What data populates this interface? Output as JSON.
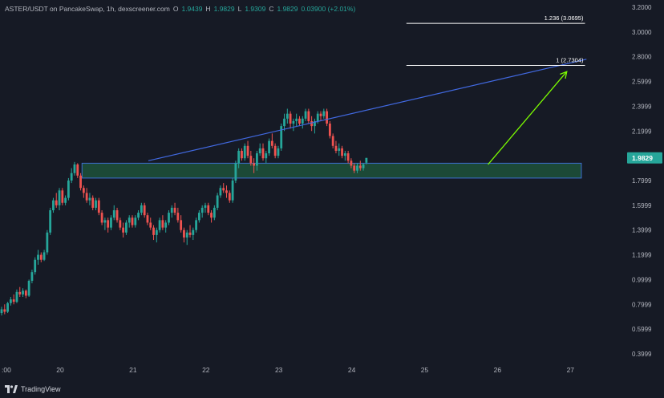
{
  "header": {
    "pair_text": "ASTER/USDT on PancakeSwap, 1h, dexscreener.com",
    "o_label": "O",
    "o_value": "1.9439",
    "h_label": "H",
    "h_value": "1.9829",
    "l_label": "L",
    "l_value": "1.9309",
    "c_label": "C",
    "c_value": "1.9829",
    "change": "0.03900 (+2.01%)"
  },
  "footer": {
    "brand": "TradingView"
  },
  "colors": {
    "background": "#161a25",
    "up": "#26a69a",
    "down": "#ef5350",
    "trendline": "#4169e1",
    "zone_fill": "#1f5a3e",
    "zone_border": "#3d6fd0",
    "arrow": "#7cfc00",
    "fib_line": "#ffffff",
    "axis_text": "#b2b5be",
    "price_tag": "#26a69a"
  },
  "chart_data": {
    "type": "candlestick",
    "title": "ASTER/USDT on PancakeSwap, 1h, dexscreener.com",
    "xlabel": "",
    "ylabel": "",
    "grid": false,
    "y_ticks": [
      "3.2000",
      "3.0000",
      "2.8000",
      "2.5999",
      "2.3999",
      "2.1999",
      "1.9999",
      "1.7999",
      "1.5999",
      "1.3999",
      "1.1999",
      "0.9999",
      "0.7999",
      "0.5999",
      "0.3999"
    ],
    "y_tick_values": [
      3.2,
      3.0,
      2.8,
      2.5999,
      2.3999,
      2.1999,
      1.9999,
      1.7999,
      1.5999,
      1.3999,
      1.1999,
      0.9999,
      0.7999,
      0.5999,
      0.3999
    ],
    "ylim": [
      0.3,
      3.2
    ],
    "x_ticks": [
      {
        "label": ":00",
        "day": 18.78
      },
      {
        "label": "20",
        "day": 20
      },
      {
        "label": "21",
        "day": 21
      },
      {
        "label": "22",
        "day": 22
      },
      {
        "label": "23",
        "day": 23
      },
      {
        "label": "24",
        "day": 24
      },
      {
        "label": "25",
        "day": 25
      },
      {
        "label": "26",
        "day": 26
      },
      {
        "label": "27",
        "day": 27
      }
    ],
    "xlim": [
      18.7,
      27.8
    ],
    "last_price": "1.9829",
    "last_price_value": 1.9829,
    "candle_start_day": 18.78,
    "candle_step_days": 0.0417,
    "candles": [
      [
        0.6,
        0.62,
        0.58,
        0.61
      ],
      [
        0.61,
        0.63,
        0.57,
        0.58
      ],
      [
        0.58,
        0.62,
        0.55,
        0.6
      ],
      [
        0.6,
        0.62,
        0.52,
        0.55
      ],
      [
        0.55,
        0.62,
        0.54,
        0.61
      ],
      [
        0.61,
        0.66,
        0.59,
        0.64
      ],
      [
        0.64,
        0.7,
        0.62,
        0.67
      ],
      [
        0.67,
        0.7,
        0.63,
        0.64
      ],
      [
        0.64,
        0.72,
        0.63,
        0.71
      ],
      [
        0.71,
        0.76,
        0.69,
        0.73
      ],
      [
        0.73,
        0.78,
        0.71,
        0.76
      ],
      [
        0.76,
        0.8,
        0.72,
        0.74
      ],
      [
        0.74,
        0.82,
        0.73,
        0.81
      ],
      [
        0.81,
        0.86,
        0.79,
        0.84
      ],
      [
        0.84,
        0.88,
        0.8,
        0.82
      ],
      [
        0.82,
        0.92,
        0.81,
        0.9
      ],
      [
        0.9,
        0.94,
        0.86,
        0.88
      ],
      [
        0.88,
        0.93,
        0.86,
        0.91
      ],
      [
        0.91,
        0.92,
        0.85,
        0.87
      ],
      [
        0.87,
        1.0,
        0.86,
        0.99
      ],
      [
        0.99,
        1.08,
        0.97,
        1.06
      ],
      [
        1.06,
        1.18,
        1.04,
        1.16
      ],
      [
        1.16,
        1.24,
        1.12,
        1.2
      ],
      [
        1.2,
        1.22,
        1.14,
        1.16
      ],
      [
        1.16,
        1.24,
        1.15,
        1.22
      ],
      [
        1.22,
        1.4,
        1.2,
        1.38
      ],
      [
        1.38,
        1.58,
        1.36,
        1.56
      ],
      [
        1.56,
        1.66,
        1.54,
        1.64
      ],
      [
        1.64,
        1.7,
        1.58,
        1.6
      ],
      [
        1.6,
        1.74,
        1.56,
        1.72
      ],
      [
        1.72,
        1.74,
        1.6,
        1.62
      ],
      [
        1.62,
        1.68,
        1.6,
        1.66
      ],
      [
        1.66,
        1.82,
        1.64,
        1.8
      ],
      [
        1.8,
        1.9,
        1.78,
        1.86
      ],
      [
        1.86,
        1.95,
        1.84,
        1.93
      ],
      [
        1.93,
        1.94,
        1.82,
        1.84
      ],
      [
        1.84,
        1.86,
        1.72,
        1.74
      ],
      [
        1.74,
        1.76,
        1.66,
        1.7
      ],
      [
        1.7,
        1.74,
        1.62,
        1.64
      ],
      [
        1.64,
        1.7,
        1.6,
        1.66
      ],
      [
        1.66,
        1.68,
        1.56,
        1.58
      ],
      [
        1.58,
        1.66,
        1.56,
        1.64
      ],
      [
        1.64,
        1.66,
        1.52,
        1.54
      ],
      [
        1.54,
        1.56,
        1.44,
        1.46
      ],
      [
        1.46,
        1.5,
        1.4,
        1.48
      ],
      [
        1.48,
        1.5,
        1.38,
        1.42
      ],
      [
        1.42,
        1.52,
        1.4,
        1.5
      ],
      [
        1.5,
        1.6,
        1.48,
        1.56
      ],
      [
        1.56,
        1.58,
        1.46,
        1.48
      ],
      [
        1.48,
        1.5,
        1.4,
        1.42
      ],
      [
        1.42,
        1.46,
        1.34,
        1.38
      ],
      [
        1.38,
        1.48,
        1.36,
        1.46
      ],
      [
        1.46,
        1.52,
        1.42,
        1.5
      ],
      [
        1.5,
        1.52,
        1.42,
        1.44
      ],
      [
        1.44,
        1.52,
        1.42,
        1.5
      ],
      [
        1.5,
        1.56,
        1.48,
        1.54
      ],
      [
        1.54,
        1.62,
        1.52,
        1.6
      ],
      [
        1.6,
        1.62,
        1.5,
        1.52
      ],
      [
        1.52,
        1.54,
        1.44,
        1.46
      ],
      [
        1.46,
        1.5,
        1.4,
        1.42
      ],
      [
        1.42,
        1.44,
        1.32,
        1.36
      ],
      [
        1.36,
        1.42,
        1.3,
        1.4
      ],
      [
        1.4,
        1.5,
        1.38,
        1.48
      ],
      [
        1.48,
        1.52,
        1.4,
        1.42
      ],
      [
        1.42,
        1.48,
        1.38,
        1.46
      ],
      [
        1.46,
        1.56,
        1.44,
        1.54
      ],
      [
        1.54,
        1.6,
        1.5,
        1.58
      ],
      [
        1.58,
        1.62,
        1.52,
        1.54
      ],
      [
        1.54,
        1.58,
        1.46,
        1.48
      ],
      [
        1.48,
        1.52,
        1.38,
        1.4
      ],
      [
        1.4,
        1.42,
        1.3,
        1.34
      ],
      [
        1.34,
        1.4,
        1.28,
        1.38
      ],
      [
        1.38,
        1.44,
        1.34,
        1.36
      ],
      [
        1.36,
        1.42,
        1.32,
        1.4
      ],
      [
        1.4,
        1.5,
        1.38,
        1.48
      ],
      [
        1.48,
        1.56,
        1.46,
        1.54
      ],
      [
        1.54,
        1.6,
        1.5,
        1.58
      ],
      [
        1.58,
        1.62,
        1.54,
        1.6
      ],
      [
        1.6,
        1.62,
        1.52,
        1.54
      ],
      [
        1.54,
        1.56,
        1.46,
        1.5
      ],
      [
        1.5,
        1.6,
        1.48,
        1.58
      ],
      [
        1.58,
        1.7,
        1.56,
        1.68
      ],
      [
        1.68,
        1.76,
        1.66,
        1.74
      ],
      [
        1.74,
        1.78,
        1.7,
        1.72
      ],
      [
        1.72,
        1.76,
        1.66,
        1.7
      ],
      [
        1.7,
        1.72,
        1.62,
        1.64
      ],
      [
        1.64,
        1.82,
        1.62,
        1.8
      ],
      [
        1.8,
        1.96,
        1.78,
        1.94
      ],
      [
        1.94,
        2.06,
        1.9,
        2.04
      ],
      [
        2.04,
        2.06,
        1.96,
        1.98
      ],
      [
        1.98,
        2.1,
        1.96,
        2.08
      ],
      [
        2.08,
        2.12,
        1.98,
        2.0
      ],
      [
        2.0,
        2.04,
        1.92,
        1.94
      ],
      [
        1.94,
        1.98,
        1.86,
        1.92
      ],
      [
        1.92,
        2.04,
        1.88,
        2.02
      ],
      [
        2.02,
        2.1,
        2.0,
        2.06
      ],
      [
        2.06,
        2.1,
        1.96,
        1.98
      ],
      [
        1.98,
        2.04,
        1.94,
        2.02
      ],
      [
        2.02,
        2.14,
        2.0,
        2.12
      ],
      [
        2.12,
        2.18,
        2.06,
        2.08
      ],
      [
        2.08,
        2.1,
        1.98,
        2.0
      ],
      [
        2.0,
        2.08,
        1.98,
        2.06
      ],
      [
        2.06,
        2.26,
        2.04,
        2.24
      ],
      [
        2.24,
        2.34,
        2.2,
        2.3
      ],
      [
        2.3,
        2.38,
        2.26,
        2.34
      ],
      [
        2.34,
        2.36,
        2.22,
        2.26
      ],
      [
        2.26,
        2.3,
        2.2,
        2.28
      ],
      [
        2.28,
        2.34,
        2.24,
        2.3
      ],
      [
        2.3,
        2.32,
        2.24,
        2.26
      ],
      [
        2.26,
        2.32,
        2.22,
        2.3
      ],
      [
        2.3,
        2.38,
        2.28,
        2.36
      ],
      [
        2.36,
        2.38,
        2.26,
        2.28
      ],
      [
        2.28,
        2.32,
        2.2,
        2.24
      ],
      [
        2.24,
        2.3,
        2.18,
        2.28
      ],
      [
        2.28,
        2.36,
        2.26,
        2.34
      ],
      [
        2.34,
        2.36,
        2.28,
        2.32
      ],
      [
        2.32,
        2.38,
        2.3,
        2.36
      ],
      [
        2.36,
        2.38,
        2.24,
        2.26
      ],
      [
        2.26,
        2.28,
        2.14,
        2.16
      ],
      [
        2.16,
        2.18,
        2.06,
        2.08
      ],
      [
        2.08,
        2.12,
        2.02,
        2.04
      ],
      [
        2.04,
        2.1,
        2.0,
        2.06
      ],
      [
        2.06,
        2.08,
        1.98,
        2.0
      ],
      [
        2.0,
        2.04,
        1.96,
        2.02
      ],
      [
        2.02,
        2.04,
        1.94,
        1.96
      ],
      [
        1.96,
        1.98,
        1.9,
        1.92
      ],
      [
        1.92,
        1.94,
        1.86,
        1.88
      ],
      [
        1.88,
        1.94,
        1.86,
        1.92
      ],
      [
        1.92,
        1.96,
        1.88,
        1.9
      ],
      [
        1.9,
        1.94,
        1.88,
        1.93
      ],
      [
        1.9439,
        1.9829,
        1.9309,
        1.9829
      ]
    ],
    "trendline": {
      "start": {
        "day": 21.21,
        "price": 1.96
      },
      "end": {
        "day": 27.22,
        "price": 2.78
      }
    },
    "zone": {
      "start_day": 20.3,
      "end_day": 27.15,
      "top": 1.94,
      "bottom": 1.82
    },
    "arrow": {
      "start": {
        "day": 25.87,
        "price": 1.93
      },
      "end": {
        "day": 26.95,
        "price": 2.68
      }
    },
    "fib_levels": [
      {
        "label": "1.236 (3.0695)",
        "price": 3.0695,
        "start_day": 24.75,
        "end_day": 27.2
      },
      {
        "label": "1 (2.7304)",
        "price": 2.7304,
        "start_day": 24.75,
        "end_day": 27.2
      }
    ]
  }
}
